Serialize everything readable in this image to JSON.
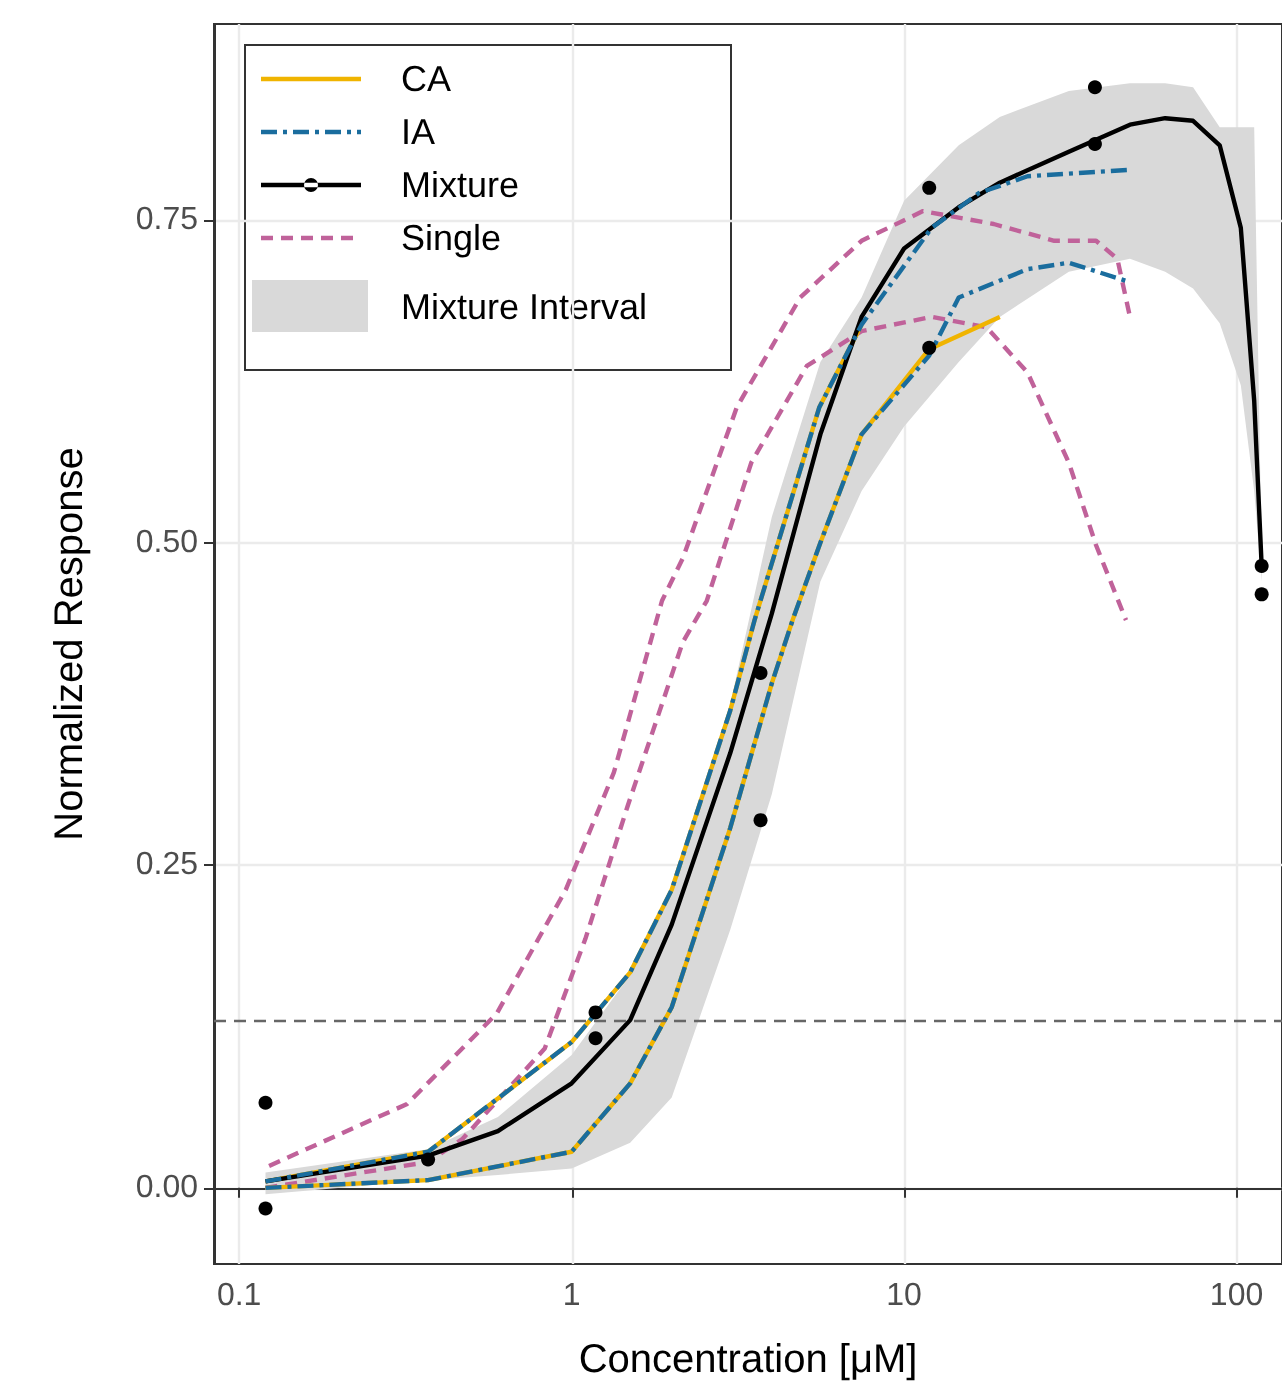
{
  "chart_data": {
    "type": "line",
    "xlabel": "Concentration [μM]",
    "ylabel": "Normalized Response",
    "log": "x",
    "xlim": [
      0.084,
      137
    ],
    "ylim": [
      -0.059,
      0.902
    ],
    "xticks": [
      0.1,
      1,
      10,
      100
    ],
    "yticks": [
      {
        "value": 0,
        "label": "0.00"
      },
      {
        "value": 0.25,
        "label": "0.25"
      },
      {
        "value": 0.5,
        "label": "0.50"
      },
      {
        "value": 0.75,
        "label": "0.75"
      }
    ],
    "grid": true,
    "legend": "top left",
    "ref_lines": [
      {
        "axis": "y",
        "value": 0.133,
        "color": "#666666",
        "line_style": "dashed"
      }
    ],
    "series": [
      {
        "name": "CA",
        "color": "#f0b400",
        "line_style": "solid",
        "x": [
          0.12,
          0.37,
          1,
          1.5,
          2,
          3,
          3.55,
          5.56,
          7.45
        ],
        "values": [
          0.005,
          0.028,
          0.113,
          0.167,
          0.231,
          0.37,
          0.44,
          0.605,
          0.669
        ]
      },
      {
        "color": "#f0b400",
        "line_style": "solid",
        "x": [
          0.12,
          0.37,
          1,
          1.5,
          2,
          3,
          4,
          4.62,
          5.6,
          7.45,
          11.9,
          19.4
        ],
        "values": [
          0,
          0.006,
          0.028,
          0.081,
          0.14,
          0.279,
          0.391,
          0.44,
          0.5,
          0.584,
          0.65,
          0.675
        ]
      },
      {
        "name": "IA",
        "color": "#1a6d9e",
        "line_style": "dashdot",
        "x": [
          0.12,
          0.37,
          1,
          1.5,
          2,
          3,
          3.55,
          5.56,
          7.45,
          12.1,
          16.8,
          23.5,
          47.8
        ],
        "values": [
          0.005,
          0.028,
          0.113,
          0.167,
          0.231,
          0.37,
          0.44,
          0.605,
          0.669,
          0.744,
          0.771,
          0.784,
          0.789
        ]
      },
      {
        "color": "#1a6d9e",
        "line_style": "dashdot",
        "x": [
          0.12,
          0.37,
          1,
          1.5,
          2,
          3,
          4,
          4.62,
          5.6,
          7.45,
          11.9,
          14.6,
          23.5,
          31.3,
          47.8
        ],
        "values": [
          0,
          0.006,
          0.028,
          0.081,
          0.14,
          0.279,
          0.391,
          0.44,
          0.5,
          0.584,
          0.645,
          0.69,
          0.712,
          0.717,
          0.702
        ]
      },
      {
        "name": "Mixture",
        "color": "#000000",
        "line_style": "solid",
        "x": [
          0.12,
          0.37,
          0.6,
          1,
          1.5,
          2,
          3,
          4,
          5.6,
          7.45,
          10,
          14.6,
          19.4,
          31.3,
          47.8,
          61,
          74,
          89,
          103,
          113,
          119
        ],
        "values": [
          0.005,
          0.025,
          0.044,
          0.081,
          0.13,
          0.204,
          0.337,
          0.445,
          0.584,
          0.675,
          0.728,
          0.76,
          0.779,
          0.803,
          0.824,
          0.829,
          0.827,
          0.808,
          0.744,
          0.61,
          0.482
        ],
        "lower": [
          -0.005,
          0.006,
          0.01,
          0.015,
          0.035,
          0.07,
          0.2,
          0.305,
          0.47,
          0.54,
          0.59,
          0.64,
          0.675,
          0.71,
          0.72,
          0.71,
          0.697,
          0.67,
          0.622,
          0.54,
          0.47
        ],
        "upper": [
          0.012,
          0.03,
          0.055,
          0.103,
          0.165,
          0.231,
          0.375,
          0.52,
          0.64,
          0.69,
          0.765,
          0.808,
          0.83,
          0.85,
          0.856,
          0.856,
          0.853,
          0.822,
          0.822,
          0.822,
          0.49
        ]
      },
      {
        "type": "scatter",
        "color": "#000000",
        "marker": "circle",
        "x": [
          0.12,
          0.12,
          0.37,
          1.18,
          1.18,
          3.7,
          3.7,
          11.9,
          11.9,
          37.5,
          37.5,
          119,
          119
        ],
        "values": [
          0.066,
          -0.016,
          0.022,
          0.136,
          0.116,
          0.399,
          0.285,
          0.775,
          0.651,
          0.853,
          0.809,
          0.482,
          0.46
        ]
      },
      {
        "name": "Single",
        "color": "#c0629a",
        "line_style": "dashed",
        "x": [
          0.123,
          0.32,
          0.595,
          0.96,
          1.34,
          1.87,
          2.16,
          3.14,
          4.87,
          7.45,
          11.4,
          18.6,
          28.3,
          37.8,
          43.8,
          47.8
        ],
        "values": [
          0.017,
          0.065,
          0.135,
          0.231,
          0.322,
          0.455,
          0.488,
          0.605,
          0.69,
          0.734,
          0.757,
          0.747,
          0.734,
          0.734,
          0.72,
          0.675
        ]
      },
      {
        "color": "#c0629a",
        "line_style": "dashed",
        "x": [
          0.12,
          0.37,
          0.47,
          0.83,
          1.1,
          1.47,
          2.16,
          2.55,
          3.47,
          5.1,
          7.45,
          12.1,
          17.7,
          23.5,
          31.3,
          37.8,
          46.5
        ],
        "values": [
          0,
          0.02,
          0.038,
          0.108,
          0.193,
          0.295,
          0.423,
          0.455,
          0.562,
          0.637,
          0.664,
          0.675,
          0.667,
          0.632,
          0.562,
          0.498,
          0.44
        ]
      }
    ],
    "annotations": [
      "Mixture Interval"
    ]
  }
}
